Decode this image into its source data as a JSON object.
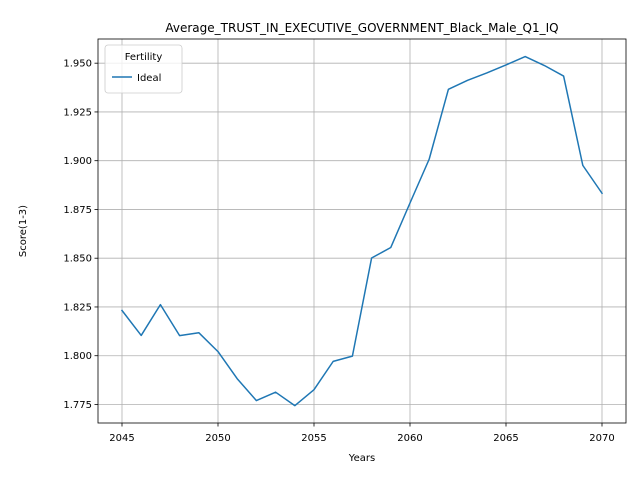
{
  "chart_data": {
    "type": "line",
    "title": "Average_TRUST_IN_EXECUTIVE_GOVERNMENT_Black_Male_Q1_IQ",
    "xlabel": "Years",
    "ylabel": "Score(1-3)",
    "xlim": [
      2043.75,
      2071.25
    ],
    "ylim": [
      1.7655,
      1.9624
    ],
    "xticks": [
      2045,
      2050,
      2055,
      2060,
      2065,
      2070
    ],
    "xtick_labels": [
      "2045",
      "2050",
      "2055",
      "2060",
      "2065",
      "2070"
    ],
    "yticks": [
      1.775,
      1.8,
      1.825,
      1.85,
      1.875,
      1.9,
      1.925,
      1.95
    ],
    "ytick_labels": [
      "1.775",
      "1.800",
      "1.825",
      "1.850",
      "1.875",
      "1.900",
      "1.925",
      "1.950"
    ],
    "grid": true,
    "legend": {
      "title": "Fertility",
      "placement": "top-left"
    },
    "x": [
      2045,
      2046,
      2047,
      2048,
      2049,
      2050,
      2051,
      2052,
      2053,
      2054,
      2055,
      2056,
      2057,
      2058,
      2059,
      2060,
      2061,
      2062,
      2063,
      2064,
      2065,
      2066,
      2067,
      2068,
      2069,
      2070
    ],
    "series": [
      {
        "name": "Ideal",
        "color": "#1f77b4",
        "values": [
          1.8232,
          1.8104,
          1.8262,
          1.8103,
          1.8118,
          1.8021,
          1.7882,
          1.777,
          1.7813,
          1.7744,
          1.7826,
          1.7971,
          1.7998,
          1.8501,
          1.8555,
          1.8783,
          1.9008,
          1.9366,
          1.9412,
          1.945,
          1.9491,
          1.9534,
          1.9488,
          1.9434,
          1.8976,
          1.8833
        ]
      }
    ]
  }
}
